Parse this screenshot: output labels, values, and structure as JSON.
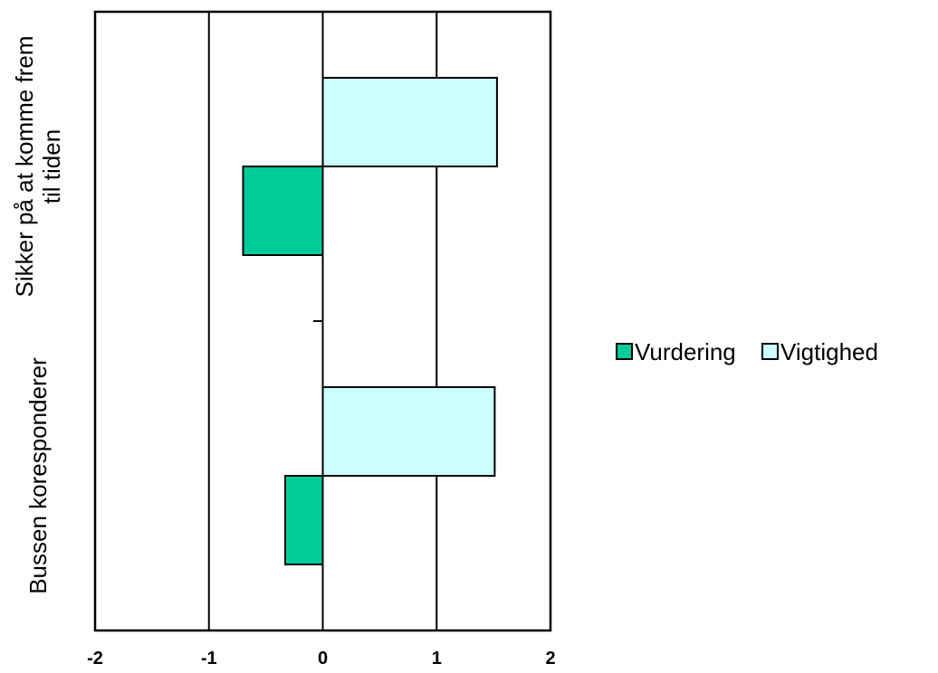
{
  "chart_data": {
    "type": "bar",
    "orientation": "horizontal",
    "categories": [
      "Sikker på at komme frem til tiden",
      "Bussen koresponderer"
    ],
    "category_label_lines": [
      [
        "Sikker på at komme frem",
        "til tiden"
      ],
      [
        "Bussen koresponderer"
      ]
    ],
    "series": [
      {
        "name": "Vurdering",
        "values": [
          -0.7,
          -0.33
        ],
        "color": "#00cc99"
      },
      {
        "name": "Vigtighed",
        "values": [
          1.53,
          1.51
        ],
        "color": "#ccffff"
      }
    ],
    "xlim": [
      -2,
      2
    ],
    "xticks": [
      "-2",
      "-1",
      "0",
      "1",
      "2"
    ],
    "grid": "vertical",
    "legend_position": "right",
    "title": "",
    "xlabel": "",
    "ylabel": ""
  }
}
